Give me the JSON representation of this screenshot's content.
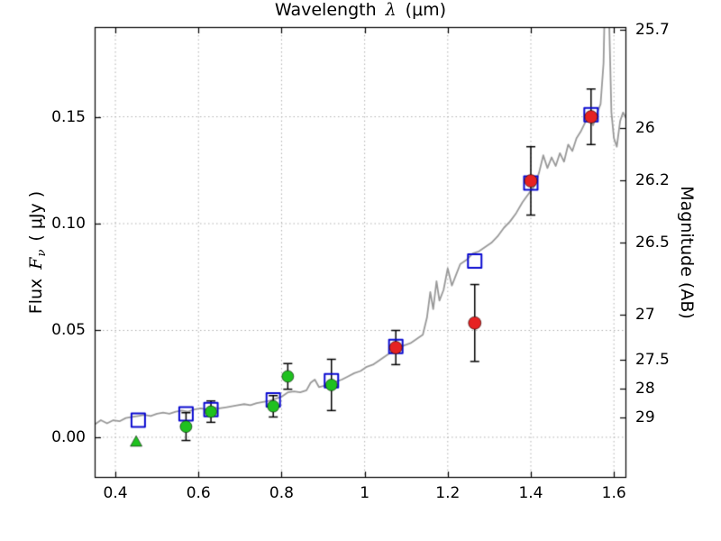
{
  "chart_data": {
    "type": "line",
    "title": "",
    "xlabel_parts": {
      "prefix": "Wavelength",
      "symbol": "λ",
      "suffix": "(μm)"
    },
    "ylabel_left_parts": {
      "prefix": "Flux",
      "symbol": "F",
      "sub": "ν",
      "suffix": "( μJy )"
    },
    "ylabel_right": "Magnitude (AB)",
    "xlim": [
      0.35,
      1.63
    ],
    "ylim": [
      -0.019,
      0.192
    ],
    "x_ticks": [
      0.4,
      0.6,
      0.8,
      1,
      1.2,
      1.4,
      1.6
    ],
    "x_tick_labels": [
      "0.4",
      "0.6",
      "0.8",
      "1",
      "1.2",
      "1.4",
      "1.6"
    ],
    "y_ticks": [
      0,
      0.05,
      0.1,
      0.15
    ],
    "y_tick_labels": [
      "0.00",
      "0.05",
      "0.10",
      "0.15"
    ],
    "right_axis_mag_ticks": [
      25.7,
      26,
      26.2,
      26.5,
      27,
      27.5,
      28,
      29
    ],
    "right_axis_mag_labels": [
      "25.7",
      "26",
      "26.2",
      "26.5",
      "27",
      "27.5",
      "28",
      "29"
    ],
    "mag_zeropoint": 23.9,
    "grid": true,
    "grid_color": "#b0b0b0",
    "axis_color": "#000000",
    "errorbar_color": "#000000",
    "background": "#ffffff",
    "spectrum": {
      "name": "gray-spectrum-line",
      "color": "#999999",
      "points": [
        [
          0.35,
          0.006
        ],
        [
          0.365,
          0.008
        ],
        [
          0.38,
          0.0065
        ],
        [
          0.395,
          0.008
        ],
        [
          0.41,
          0.0075
        ],
        [
          0.425,
          0.009
        ],
        [
          0.44,
          0.0095
        ],
        [
          0.455,
          0.01
        ],
        [
          0.47,
          0.0105
        ],
        [
          0.485,
          0.01
        ],
        [
          0.5,
          0.011
        ],
        [
          0.515,
          0.0115
        ],
        [
          0.53,
          0.011
        ],
        [
          0.545,
          0.012
        ],
        [
          0.56,
          0.0125
        ],
        [
          0.575,
          0.012
        ],
        [
          0.59,
          0.013
        ],
        [
          0.605,
          0.0135
        ],
        [
          0.62,
          0.013
        ],
        [
          0.635,
          0.014
        ],
        [
          0.65,
          0.0135
        ],
        [
          0.665,
          0.014
        ],
        [
          0.68,
          0.0145
        ],
        [
          0.695,
          0.015
        ],
        [
          0.71,
          0.0155
        ],
        [
          0.725,
          0.015
        ],
        [
          0.74,
          0.016
        ],
        [
          0.755,
          0.0165
        ],
        [
          0.77,
          0.017
        ],
        [
          0.785,
          0.018
        ],
        [
          0.8,
          0.019
        ],
        [
          0.815,
          0.021
        ],
        [
          0.83,
          0.0215
        ],
        [
          0.845,
          0.021
        ],
        [
          0.86,
          0.022
        ],
        [
          0.87,
          0.0255
        ],
        [
          0.88,
          0.027
        ],
        [
          0.89,
          0.0235
        ],
        [
          0.9,
          0.024
        ],
        [
          0.915,
          0.025
        ],
        [
          0.93,
          0.026
        ],
        [
          0.945,
          0.027
        ],
        [
          0.96,
          0.0285
        ],
        [
          0.975,
          0.03
        ],
        [
          0.99,
          0.031
        ],
        [
          1.005,
          0.033
        ],
        [
          1.02,
          0.034
        ],
        [
          1.035,
          0.036
        ],
        [
          1.05,
          0.038
        ],
        [
          1.065,
          0.04
        ],
        [
          1.08,
          0.041
        ],
        [
          1.095,
          0.043
        ],
        [
          1.11,
          0.044
        ],
        [
          1.125,
          0.046
        ],
        [
          1.14,
          0.048
        ],
        [
          1.15,
          0.056
        ],
        [
          1.158,
          0.068
        ],
        [
          1.165,
          0.06
        ],
        [
          1.173,
          0.073
        ],
        [
          1.18,
          0.064
        ],
        [
          1.19,
          0.069
        ],
        [
          1.2,
          0.079
        ],
        [
          1.21,
          0.071
        ],
        [
          1.22,
          0.076
        ],
        [
          1.23,
          0.081
        ],
        [
          1.245,
          0.083
        ],
        [
          1.26,
          0.086
        ],
        [
          1.275,
          0.087
        ],
        [
          1.29,
          0.089
        ],
        [
          1.305,
          0.091
        ],
        [
          1.32,
          0.094
        ],
        [
          1.335,
          0.098
        ],
        [
          1.35,
          0.101
        ],
        [
          1.365,
          0.105
        ],
        [
          1.38,
          0.11
        ],
        [
          1.395,
          0.114
        ],
        [
          1.41,
          0.118
        ],
        [
          1.42,
          0.124
        ],
        [
          1.43,
          0.132
        ],
        [
          1.44,
          0.126
        ],
        [
          1.45,
          0.131
        ],
        [
          1.46,
          0.127
        ],
        [
          1.47,
          0.133
        ],
        [
          1.48,
          0.129
        ],
        [
          1.49,
          0.137
        ],
        [
          1.5,
          0.134
        ],
        [
          1.51,
          0.14
        ],
        [
          1.52,
          0.143
        ],
        [
          1.53,
          0.147
        ],
        [
          1.54,
          0.151
        ],
        [
          1.55,
          0.146
        ],
        [
          1.56,
          0.152
        ],
        [
          1.568,
          0.156
        ],
        [
          1.575,
          0.175
        ],
        [
          1.582,
          0.24
        ],
        [
          1.588,
          0.2
        ],
        [
          1.594,
          0.152
        ],
        [
          1.6,
          0.14
        ],
        [
          1.607,
          0.136
        ],
        [
          1.615,
          0.148
        ],
        [
          1.622,
          0.152
        ],
        [
          1.63,
          0.149
        ]
      ]
    },
    "scatter_series": [
      {
        "name": "blue-open-squares",
        "marker": "square-open",
        "color": "#0a0ad0",
        "size": 15,
        "points": [
          [
            0.455,
            0.008
          ],
          [
            0.57,
            0.011
          ],
          [
            0.63,
            0.013
          ],
          [
            0.78,
            0.0175
          ],
          [
            0.92,
            0.0265
          ],
          [
            1.075,
            0.0425
          ],
          [
            1.265,
            0.0825
          ],
          [
            1.4,
            0.119
          ],
          [
            1.545,
            0.151
          ]
        ]
      },
      {
        "name": "green-filled-circles",
        "marker": "circle",
        "color": "#1fc11f",
        "size": 13,
        "points": [
          [
            0.57,
            0.005,
            0.0065
          ],
          [
            0.63,
            0.012,
            0.005
          ],
          [
            0.78,
            0.0145,
            0.005
          ],
          [
            0.815,
            0.0285,
            0.006
          ],
          [
            0.92,
            0.0245,
            0.012
          ]
        ]
      },
      {
        "name": "red-filled-circles",
        "marker": "circle",
        "color": "#e62222",
        "size": 14,
        "points": [
          [
            1.075,
            0.042,
            0.008
          ],
          [
            1.265,
            0.0535,
            0.018
          ],
          [
            1.4,
            0.12,
            0.016
          ],
          [
            1.545,
            0.15,
            0.013
          ]
        ]
      },
      {
        "name": "green-upper-limit-triangle",
        "marker": "triangle-up",
        "color": "#1fc11f",
        "size": 13,
        "points": [
          [
            0.45,
            -0.002
          ]
        ]
      }
    ]
  }
}
